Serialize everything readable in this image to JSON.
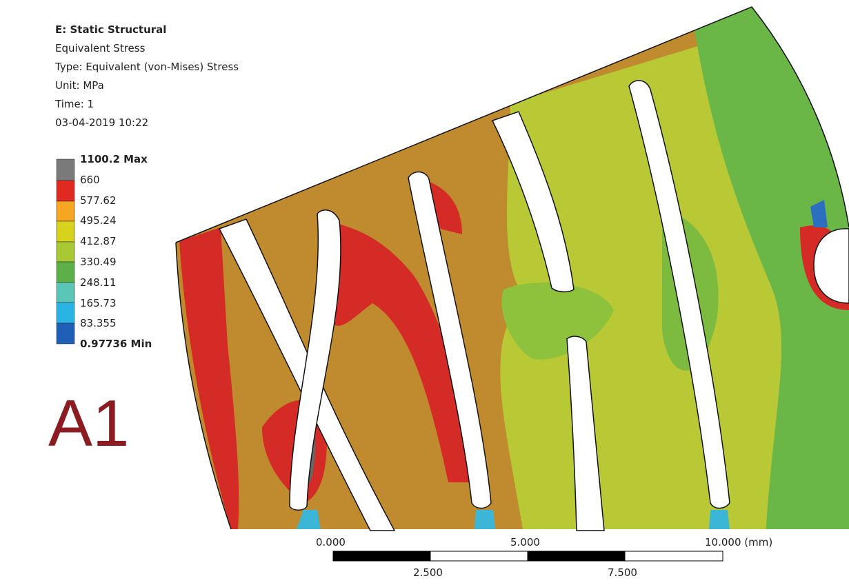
{
  "header": {
    "title": "E: Static Structural",
    "lines": [
      "Equivalent Stress",
      "Type: Equivalent (von-Mises) Stress",
      "Unit: MPa",
      "Time: 1",
      "03-04-2019 10:22"
    ]
  },
  "legend": {
    "labels": [
      "1100.2 Max",
      "660",
      "577.62",
      "495.24",
      "412.87",
      "330.49",
      "248.11",
      "165.73",
      "83.355",
      "0.97736 Min"
    ]
  },
  "scale_bar": {
    "top_labels": [
      "0.000",
      "5.000",
      "10.000 (mm)"
    ],
    "bottom_labels": [
      "2.500",
      "7.500"
    ]
  },
  "figure_label": "A1"
}
